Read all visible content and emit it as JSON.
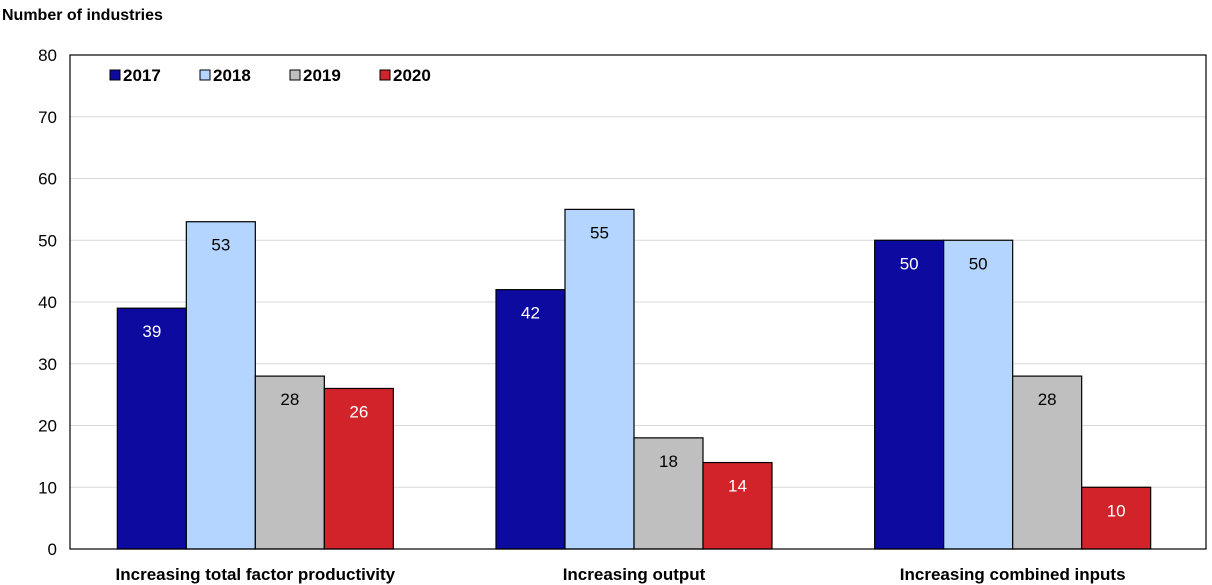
{
  "chart_data": {
    "type": "bar",
    "ylabel": "Number of industries",
    "ylim": [
      0,
      80
    ],
    "yticks": [
      0,
      10,
      20,
      30,
      40,
      50,
      60,
      70,
      80
    ],
    "categories": [
      "Increasing total factor productivity",
      "Increasing output",
      "Increasing combined inputs"
    ],
    "series": [
      {
        "name": "2017",
        "color": "#0d0aa0",
        "label_color": "#ffffff",
        "values": [
          39,
          42,
          50
        ]
      },
      {
        "name": "2018",
        "color": "#b3d5ff",
        "label_color": "#000000",
        "values": [
          53,
          55,
          50
        ]
      },
      {
        "name": "2019",
        "color": "#bfbfbf",
        "label_color": "#000000",
        "values": [
          28,
          18,
          28
        ]
      },
      {
        "name": "2020",
        "color": "#d2232a",
        "label_color": "#ffffff",
        "values": [
          26,
          14,
          10
        ]
      }
    ],
    "legend_position": "top-left",
    "grid": true
  }
}
